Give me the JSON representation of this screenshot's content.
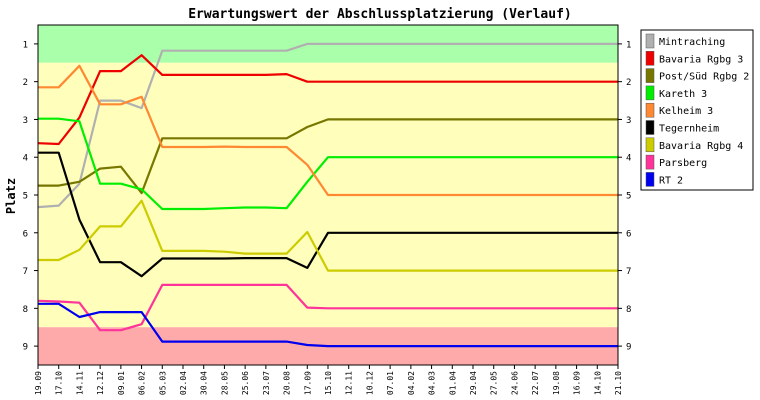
{
  "chart_data": {
    "type": "line",
    "title": "Erwartungswert der Abschlussplatzierung (Verlauf)",
    "xlabel": "",
    "ylabel": "Platz",
    "ylim": [
      0.5,
      9.5
    ],
    "y_inverted": true,
    "yticks": [
      1,
      2,
      3,
      4,
      5,
      6,
      7,
      8,
      9
    ],
    "grid": false,
    "legend_position": "right",
    "x": [
      "19.09",
      "17.10",
      "14.11",
      "12.12",
      "09.01",
      "06.02",
      "05.03",
      "02.04",
      "30.04",
      "28.05",
      "25.06",
      "23.07",
      "20.08",
      "17.09",
      "15.10",
      "12.11",
      "10.12",
      "07.01",
      "04.02",
      "04.03",
      "01.04",
      "29.04",
      "27.05",
      "24.06",
      "22.07",
      "19.08",
      "16.09",
      "14.10",
      "21.10"
    ],
    "bands": [
      {
        "from": 0.5,
        "to": 1.5,
        "color": "#aaffaa"
      },
      {
        "from": 1.5,
        "to": 8.5,
        "color": "#ffffbb"
      },
      {
        "from": 8.5,
        "to": 9.5,
        "color": "#ffaaaa"
      }
    ],
    "series": [
      {
        "name": "Mintraching",
        "color": "#b0b0b0",
        "values": [
          5.32,
          5.28,
          4.7,
          2.5,
          2.5,
          2.7,
          1.18,
          1.18,
          1.18,
          1.18,
          1.18,
          1.18,
          1.18,
          1.0,
          1.0,
          1.0,
          1.0,
          1.0,
          1.0,
          1.0,
          1.0,
          1.0,
          1.0,
          1.0,
          1.0,
          1.0,
          1.0,
          1.0,
          1.0
        ]
      },
      {
        "name": "Bavaria Rgbg 3",
        "color": "#ee0000",
        "values": [
          3.63,
          3.65,
          2.95,
          1.72,
          1.72,
          1.3,
          1.82,
          1.82,
          1.82,
          1.82,
          1.82,
          1.82,
          1.8,
          2.0,
          2.0,
          2.0,
          2.0,
          2.0,
          2.0,
          2.0,
          2.0,
          2.0,
          2.0,
          2.0,
          2.0,
          2.0,
          2.0,
          2.0,
          2.0
        ]
      },
      {
        "name": "Post/Süd Rgbg 2",
        "color": "#777700",
        "values": [
          4.75,
          4.75,
          4.65,
          4.3,
          4.25,
          4.95,
          3.5,
          3.5,
          3.5,
          3.5,
          3.5,
          3.5,
          3.5,
          3.2,
          3.0,
          3.0,
          3.0,
          3.0,
          3.0,
          3.0,
          3.0,
          3.0,
          3.0,
          3.0,
          3.0,
          3.0,
          3.0,
          3.0,
          3.0
        ]
      },
      {
        "name": "Kareth 3",
        "color": "#00ee00",
        "values": [
          2.98,
          2.98,
          3.05,
          4.7,
          4.7,
          4.85,
          5.37,
          5.37,
          5.37,
          5.35,
          5.33,
          5.33,
          5.35,
          4.65,
          4.0,
          4.0,
          4.0,
          4.0,
          4.0,
          4.0,
          4.0,
          4.0,
          4.0,
          4.0,
          4.0,
          4.0,
          4.0,
          4.0,
          4.0
        ]
      },
      {
        "name": "Kelheim 3",
        "color": "#ff8833",
        "values": [
          2.15,
          2.15,
          1.58,
          2.6,
          2.6,
          2.4,
          3.73,
          3.73,
          3.73,
          3.72,
          3.73,
          3.73,
          3.73,
          4.2,
          5.0,
          5.0,
          5.0,
          5.0,
          5.0,
          5.0,
          5.0,
          5.0,
          5.0,
          5.0,
          5.0,
          5.0,
          5.0,
          5.0,
          5.0
        ]
      },
      {
        "name": "Tegernheim",
        "color": "#000000",
        "values": [
          3.88,
          3.88,
          5.65,
          6.78,
          6.78,
          7.15,
          6.68,
          6.68,
          6.68,
          6.68,
          6.67,
          6.67,
          6.67,
          6.93,
          6.0,
          6.0,
          6.0,
          6.0,
          6.0,
          6.0,
          6.0,
          6.0,
          6.0,
          6.0,
          6.0,
          6.0,
          6.0,
          6.0,
          6.0
        ]
      },
      {
        "name": "Bavaria Rgbg 4",
        "color": "#cccc00",
        "values": [
          6.72,
          6.72,
          6.45,
          5.83,
          5.83,
          5.15,
          6.48,
          6.48,
          6.48,
          6.5,
          6.55,
          6.55,
          6.55,
          5.98,
          7.0,
          7.0,
          7.0,
          7.0,
          7.0,
          7.0,
          7.0,
          7.0,
          7.0,
          7.0,
          7.0,
          7.0,
          7.0,
          7.0,
          7.0
        ]
      },
      {
        "name": "Parsberg",
        "color": "#ff3399",
        "values": [
          7.8,
          7.82,
          7.85,
          8.58,
          8.58,
          8.42,
          7.38,
          7.38,
          7.38,
          7.38,
          7.38,
          7.38,
          7.38,
          7.98,
          8.0,
          8.0,
          8.0,
          8.0,
          8.0,
          8.0,
          8.0,
          8.0,
          8.0,
          8.0,
          8.0,
          8.0,
          8.0,
          8.0,
          8.0
        ]
      },
      {
        "name": "RT 2",
        "color": "#0000ee",
        "values": [
          7.88,
          7.88,
          8.23,
          8.1,
          8.1,
          8.1,
          8.88,
          8.88,
          8.88,
          8.88,
          8.88,
          8.88,
          8.88,
          8.97,
          9.0,
          9.0,
          9.0,
          9.0,
          9.0,
          9.0,
          9.0,
          9.0,
          9.0,
          9.0,
          9.0,
          9.0,
          9.0,
          9.0,
          9.0
        ]
      }
    ]
  }
}
